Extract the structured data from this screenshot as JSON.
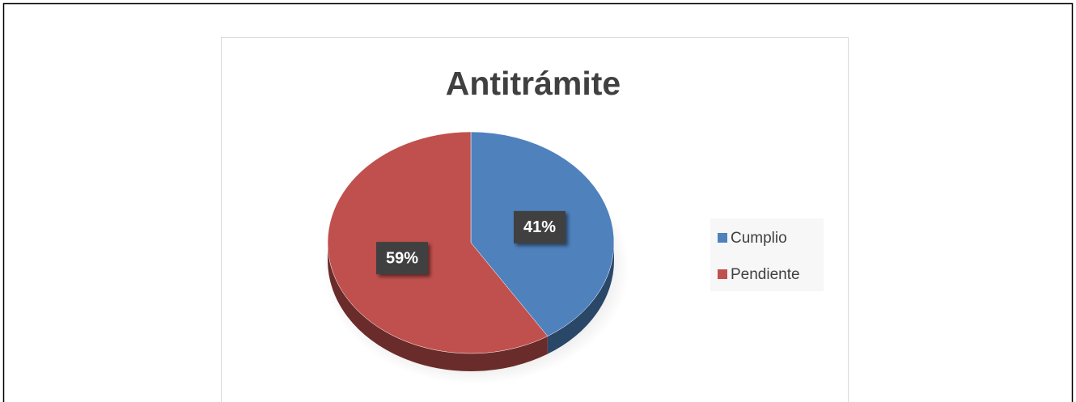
{
  "chart_data": {
    "type": "pie",
    "title": "Antitrámite",
    "categories": [
      "Cumplio",
      "Pendiente"
    ],
    "values": [
      41,
      59
    ],
    "value_labels": [
      "41%",
      "59%"
    ],
    "colors": [
      "#4f81bd",
      "#c0504d"
    ],
    "legend": "right"
  }
}
